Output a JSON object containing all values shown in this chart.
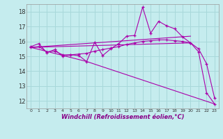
{
  "xlabel": "Windchill (Refroidissement éolien,°C)",
  "background_color": "#c5ecee",
  "grid_color": "#a8d8da",
  "line_color": "#aa00aa",
  "ylim": [
    11.5,
    18.5
  ],
  "xlim": [
    -0.5,
    23.5
  ],
  "yticks": [
    12,
    13,
    14,
    15,
    16,
    17,
    18
  ],
  "xticks": [
    0,
    1,
    2,
    3,
    4,
    5,
    6,
    7,
    8,
    9,
    10,
    11,
    12,
    13,
    14,
    15,
    16,
    17,
    18,
    19,
    20,
    21,
    22,
    23
  ],
  "x": [
    0,
    1,
    2,
    3,
    4,
    5,
    6,
    7,
    8,
    9,
    10,
    11,
    12,
    13,
    14,
    15,
    16,
    17,
    18,
    19,
    20,
    21,
    22,
    23
  ],
  "line_jagged": [
    15.65,
    15.85,
    15.25,
    15.45,
    15.0,
    15.1,
    15.05,
    14.65,
    15.95,
    15.05,
    15.5,
    15.85,
    16.35,
    16.4,
    18.3,
    16.55,
    17.35,
    17.05,
    16.85,
    16.3,
    15.9,
    15.3,
    12.55,
    11.8
  ],
  "line_smooth": [
    15.6,
    15.65,
    15.3,
    15.35,
    15.1,
    15.1,
    15.15,
    15.2,
    15.35,
    15.45,
    15.55,
    15.65,
    15.8,
    15.9,
    16.0,
    16.05,
    16.1,
    16.1,
    16.05,
    16.0,
    15.9,
    15.5,
    14.5,
    12.2
  ],
  "trend1_x": [
    0,
    20
  ],
  "trend1_y": [
    15.6,
    15.9
  ],
  "trend2_x": [
    0,
    20
  ],
  "trend2_y": [
    15.6,
    16.35
  ],
  "decline_x": [
    0,
    7,
    23
  ],
  "decline_y": [
    15.6,
    14.65,
    11.8
  ]
}
